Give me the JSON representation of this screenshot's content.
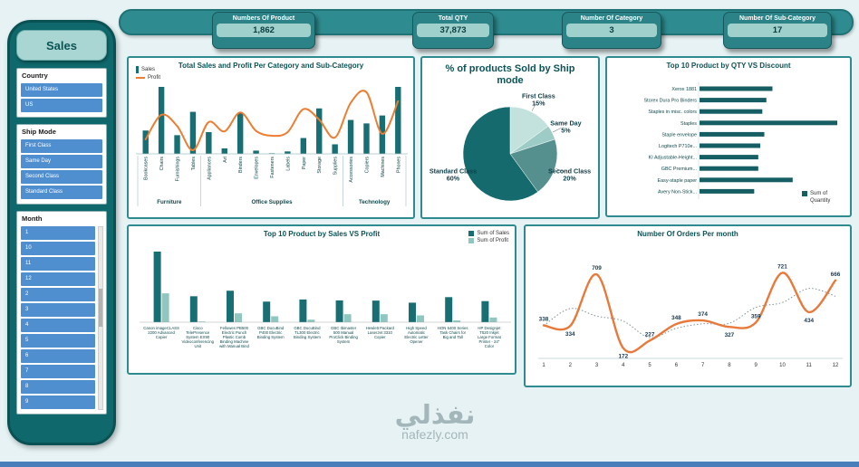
{
  "watermark": {
    "arabic": "نفذلي",
    "latin": "nafezly.com"
  },
  "sidebar": {
    "title": "Sales",
    "slicers": [
      {
        "label": "Country",
        "items": [
          "United States",
          "US"
        ],
        "scrollable": false
      },
      {
        "label": "Ship Mode",
        "items": [
          "First Class",
          "Same Day",
          "Second Class",
          "Standard Class"
        ],
        "scrollable": false
      },
      {
        "label": "Month",
        "items": [
          "1",
          "10",
          "11",
          "12",
          "2",
          "3",
          "4",
          "5",
          "6",
          "7",
          "8",
          "9"
        ],
        "scrollable": true
      }
    ]
  },
  "kpis": [
    {
      "label": "Numbers Of Product",
      "value": "1,862"
    },
    {
      "label": "Total QTY",
      "value": "37,873"
    },
    {
      "label": "Number Of Category",
      "value": "3"
    },
    {
      "label": "Number Of Sub-Category",
      "value": "17"
    }
  ],
  "chart_data": [
    {
      "id": "combo",
      "type": "bar",
      "title": "Total Sales and Profit Per Category and Sub-Category",
      "legend": [
        "Sales",
        "Profit"
      ],
      "categories": [
        "Bookcases",
        "Chairs",
        "Furnishings",
        "Tables",
        "Appliances",
        "Art",
        "Binders",
        "Envelopes",
        "Fasteners",
        "Labels",
        "Paper",
        "Storage",
        "Supplies",
        "Accessories",
        "Copiers",
        "Machines",
        "Phones"
      ],
      "groups": [
        {
          "label": "Furniture",
          "count": 4
        },
        {
          "label": "Office Supplies",
          "count": 9
        },
        {
          "label": "Technology",
          "count": 4
        }
      ],
      "series": [
        {
          "name": "Sales",
          "type": "bar",
          "color": "#176f74",
          "values": [
            115000,
            330000,
            92000,
            207000,
            107000,
            27000,
            203000,
            16000,
            3000,
            12000,
            78000,
            224000,
            47000,
            167000,
            150000,
            189000,
            330000
          ]
        },
        {
          "name": "Profit",
          "type": "line",
          "color": "#ed7d31",
          "values": [
            -3500,
            27000,
            13000,
            -17000,
            18000,
            6500,
            30000,
            7000,
            950,
            5500,
            34000,
            21000,
            -1200,
            42000,
            55000,
            3400,
            44000
          ]
        }
      ]
    },
    {
      "id": "pie",
      "type": "pie",
      "title": "% of products Sold by Ship mode",
      "slices": [
        {
          "label": "First Class",
          "pct": 15,
          "color": "#c3e2dd"
        },
        {
          "label": "Same Day",
          "pct": 5,
          "color": "#9dccc6"
        },
        {
          "label": "Second Class",
          "pct": 20,
          "color": "#55908f"
        },
        {
          "label": "Standard Class",
          "pct": 60,
          "color": "#156a6e"
        }
      ]
    },
    {
      "id": "qty",
      "type": "bar",
      "title": "Top 10 Product by QTY VS Discount",
      "legend": [
        "Sum of Quantity"
      ],
      "color": "#155e63",
      "items": [
        {
          "label": "Xerox 1881",
          "value": 36
        },
        {
          "label": "Storex  Dura Pro Binders",
          "value": 33
        },
        {
          "label": "Staples in misc. colors",
          "value": 31
        },
        {
          "label": "Staples",
          "value": 68
        },
        {
          "label": "Staple envelope",
          "value": 32
        },
        {
          "label": "Logitech P710e...",
          "value": 30
        },
        {
          "label": "KI Adjustable-Height...",
          "value": 29
        },
        {
          "label": "GBC Premium...",
          "value": 29
        },
        {
          "label": "Easy-staple paper",
          "value": 46
        },
        {
          "label": "Avery Non-Stick...",
          "value": 27
        }
      ]
    },
    {
      "id": "salesprofit",
      "type": "bar",
      "title": "Top 10 Product by Sales VS Profit",
      "legend": [
        "Sum of Sales",
        "Sum of Profit"
      ],
      "categories": [
        "Canon imageCLASS 2200 Advanced Copier",
        "Cisco TelePresence System EX90 Videoconferencing Unit",
        "Fellowes PB500 Electric Punch Plastic Comb Binding Machine with Manual Bind",
        "GBC DocuBind P400 Electric Binding System",
        "GBC DocuBind TL300 Electric Binding System",
        "GBC Ibimaster 500 Manual ProClick Binding System",
        "Hewlett Packard LaserJet 3310 Copier",
        "High Speed Automatic Electric Letter Opener",
        "HON 5400 Series Task Chairs for Big and Tall",
        "HP Designjet T520 Inkjet Large Format Printer - 24\" Color"
      ],
      "series": [
        {
          "name": "Sum of Sales",
          "color": "#176f74",
          "values": [
            61600,
            22638,
            27453,
            17965,
            19823,
            19025,
            18840,
            17030,
            21871,
            18375
          ]
        },
        {
          "name": "Sum of Profit",
          "color": "#8fc6bf",
          "values": [
            25200,
            -1811,
            7753,
            5154,
            2233,
            6958,
            6984,
            5916,
            1526,
            4095
          ]
        }
      ]
    },
    {
      "id": "orders",
      "type": "line",
      "title": "Number Of Orders Per month",
      "x": [
        1,
        2,
        3,
        4,
        5,
        6,
        7,
        8,
        9,
        10,
        11,
        12
      ],
      "values": [
        338,
        334,
        709,
        172,
        227,
        348,
        374,
        327,
        359,
        721,
        434,
        666
      ],
      "line_color": "#e8793a",
      "trend_line": "dotted moving average",
      "ylim": [
        150,
        770
      ]
    }
  ]
}
